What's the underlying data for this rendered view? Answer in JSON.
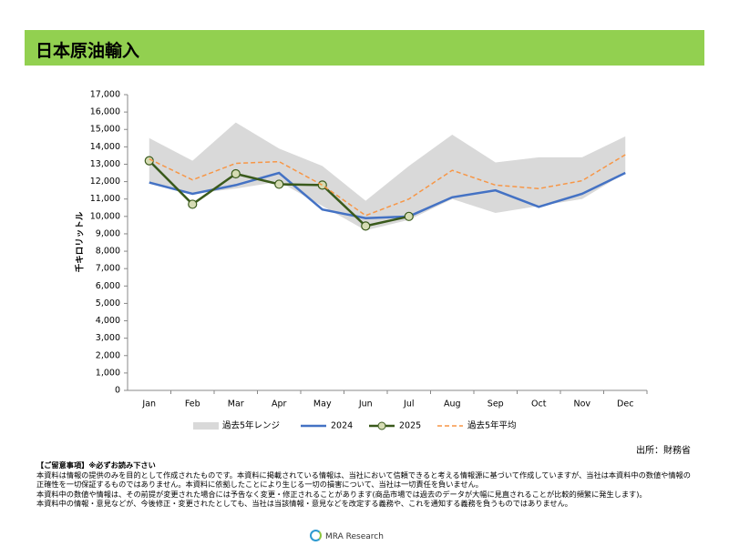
{
  "chart_data": {
    "type": "line",
    "title": "日本原油輸入",
    "y_label": "千キロリットル",
    "categories": [
      "Jan",
      "Feb",
      "Mar",
      "Apr",
      "May",
      "Jun",
      "Jul",
      "Aug",
      "Sep",
      "Oct",
      "Nov",
      "Dec"
    ],
    "ylim": [
      0,
      17000
    ],
    "yticks": [
      0,
      {
        "value": 1000,
        "label": "1,000"
      },
      {
        "value": 2000,
        "label": "2,000"
      },
      {
        "value": 3000,
        "label": "3,000"
      },
      {
        "value": 4000,
        "label": "4,000"
      },
      {
        "value": 5000,
        "label": "5,000"
      },
      {
        "value": 6000,
        "label": "6,000"
      },
      {
        "value": 7000,
        "label": "7,000"
      },
      {
        "value": 8000,
        "label": "8,000"
      },
      {
        "value": 9000,
        "label": "9,000"
      },
      {
        "value": 10000,
        "label": "10,000"
      },
      {
        "value": 11000,
        "label": "11,000"
      },
      {
        "value": 12000,
        "label": "12,000"
      },
      {
        "value": 13000,
        "label": "13,000"
      },
      {
        "value": 14000,
        "label": "14,000"
      },
      {
        "value": 15000,
        "label": "15,000"
      },
      {
        "value": 16000,
        "label": "16,000"
      },
      {
        "value": 17000,
        "label": "17,000"
      }
    ],
    "band": {
      "name": "過去5年レンジ",
      "color": "#d9d9d9",
      "high": [
        14500,
        13200,
        15400,
        13900,
        12900,
        10900,
        12900,
        14700,
        13100,
        13400,
        13400,
        14600
      ],
      "low": [
        12000,
        11300,
        11600,
        12000,
        10600,
        9200,
        9800,
        11000,
        10200,
        10600,
        11000,
        12500
      ]
    },
    "series": [
      {
        "name": "2024",
        "color": "#4472c4",
        "values": [
          11950,
          11300,
          11800,
          12500,
          10400,
          9900,
          10000,
          11100,
          11500,
          10550,
          11300,
          12500
        ]
      },
      {
        "name": "2025",
        "color": "#3a5a1c",
        "marker": "#d6dcb4",
        "values": [
          13200,
          10700,
          12450,
          11850,
          11800,
          9450,
          10000,
          null,
          null,
          null,
          null,
          null
        ]
      },
      {
        "name": "過去5年平均",
        "color": "#f79646",
        "dashed": true,
        "values": [
          13300,
          12100,
          13050,
          13150,
          11800,
          10050,
          11000,
          12650,
          11800,
          11600,
          12050,
          13550
        ]
      }
    ]
  },
  "source": "出所：財務省",
  "notes": {
    "heading": "【ご留意事項】※必ずお読み下さい",
    "lines": [
      "本資料は情報の提供のみを目的として作成されたものです。本資料に掲載されている情報は、当社において信頼できると考える情報源に基づいて作成していますが、当社は本資料中の数値や情報の正確性を一切保証するものではありません。本資料に依拠したことにより生じる一切の損害について、当社は一切責任を負いません。",
      "本資料中の数値や情報は、その前提が変更された場合には予告なく変更・修正されることがあります(商品市場では過去のデータが大幅に見直されることが比較的頻繁に発生します)。",
      "本資料中の情報・意見などが、今後修正・変更されたとしても、当社は当該情報・意見などを改定する義務や、これを通知する義務を負うものではありません。"
    ]
  },
  "footer": "MRA Research"
}
